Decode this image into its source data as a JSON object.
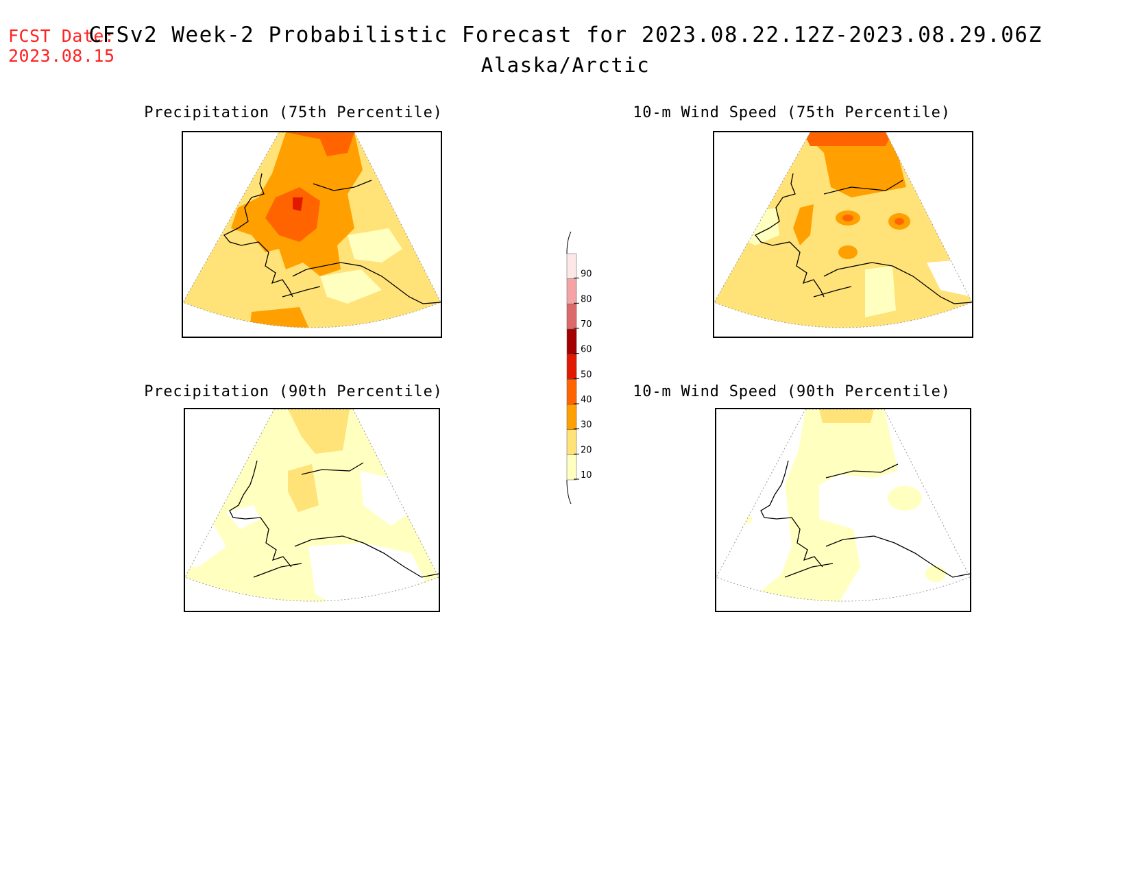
{
  "header": {
    "fcst_label": "FCST Date:",
    "fcst_date": "2023.08.15",
    "title": "CFSv2 Week-2 Probabilistic Forecast for 2023.08.22.12Z-2023.08.29.06Z",
    "subtitle": "Alaska/Arctic"
  },
  "panels": [
    {
      "title": "Precipitation (75th Percentile)",
      "variable": "precipitation",
      "percentile": 75,
      "dominant_category": "20-30",
      "max_category": "50-60"
    },
    {
      "title": "10-m Wind Speed (75th Percentile)",
      "variable": "wind_speed_10m",
      "percentile": 75,
      "dominant_category": "20-30",
      "max_category": "40-50"
    },
    {
      "title": "Precipitation (90th Percentile)",
      "variable": "precipitation",
      "percentile": 90,
      "dominant_category": "10-20",
      "max_category": "20-30"
    },
    {
      "title": "10-m Wind Speed (90th Percentile)",
      "variable": "wind_speed_10m",
      "percentile": 90,
      "dominant_category": "10-20",
      "max_category": "10-20"
    }
  ],
  "colorbar": {
    "ticks": [
      "10",
      "20",
      "30",
      "40",
      "50",
      "60",
      "70",
      "80",
      "90"
    ],
    "colors": [
      "#ffffc0",
      "#ffe278",
      "#ffa000",
      "#ff6400",
      "#e11900",
      "#a50000",
      "#dd6a6a",
      "#f4a4a4",
      "#fde8e8"
    ]
  },
  "colors": {
    "c10": "#ffffc0",
    "c20": "#ffe278",
    "c30": "#ffa000",
    "c40": "#ff6400",
    "c50": "#e11900",
    "fcst_text": "#ff2222"
  }
}
